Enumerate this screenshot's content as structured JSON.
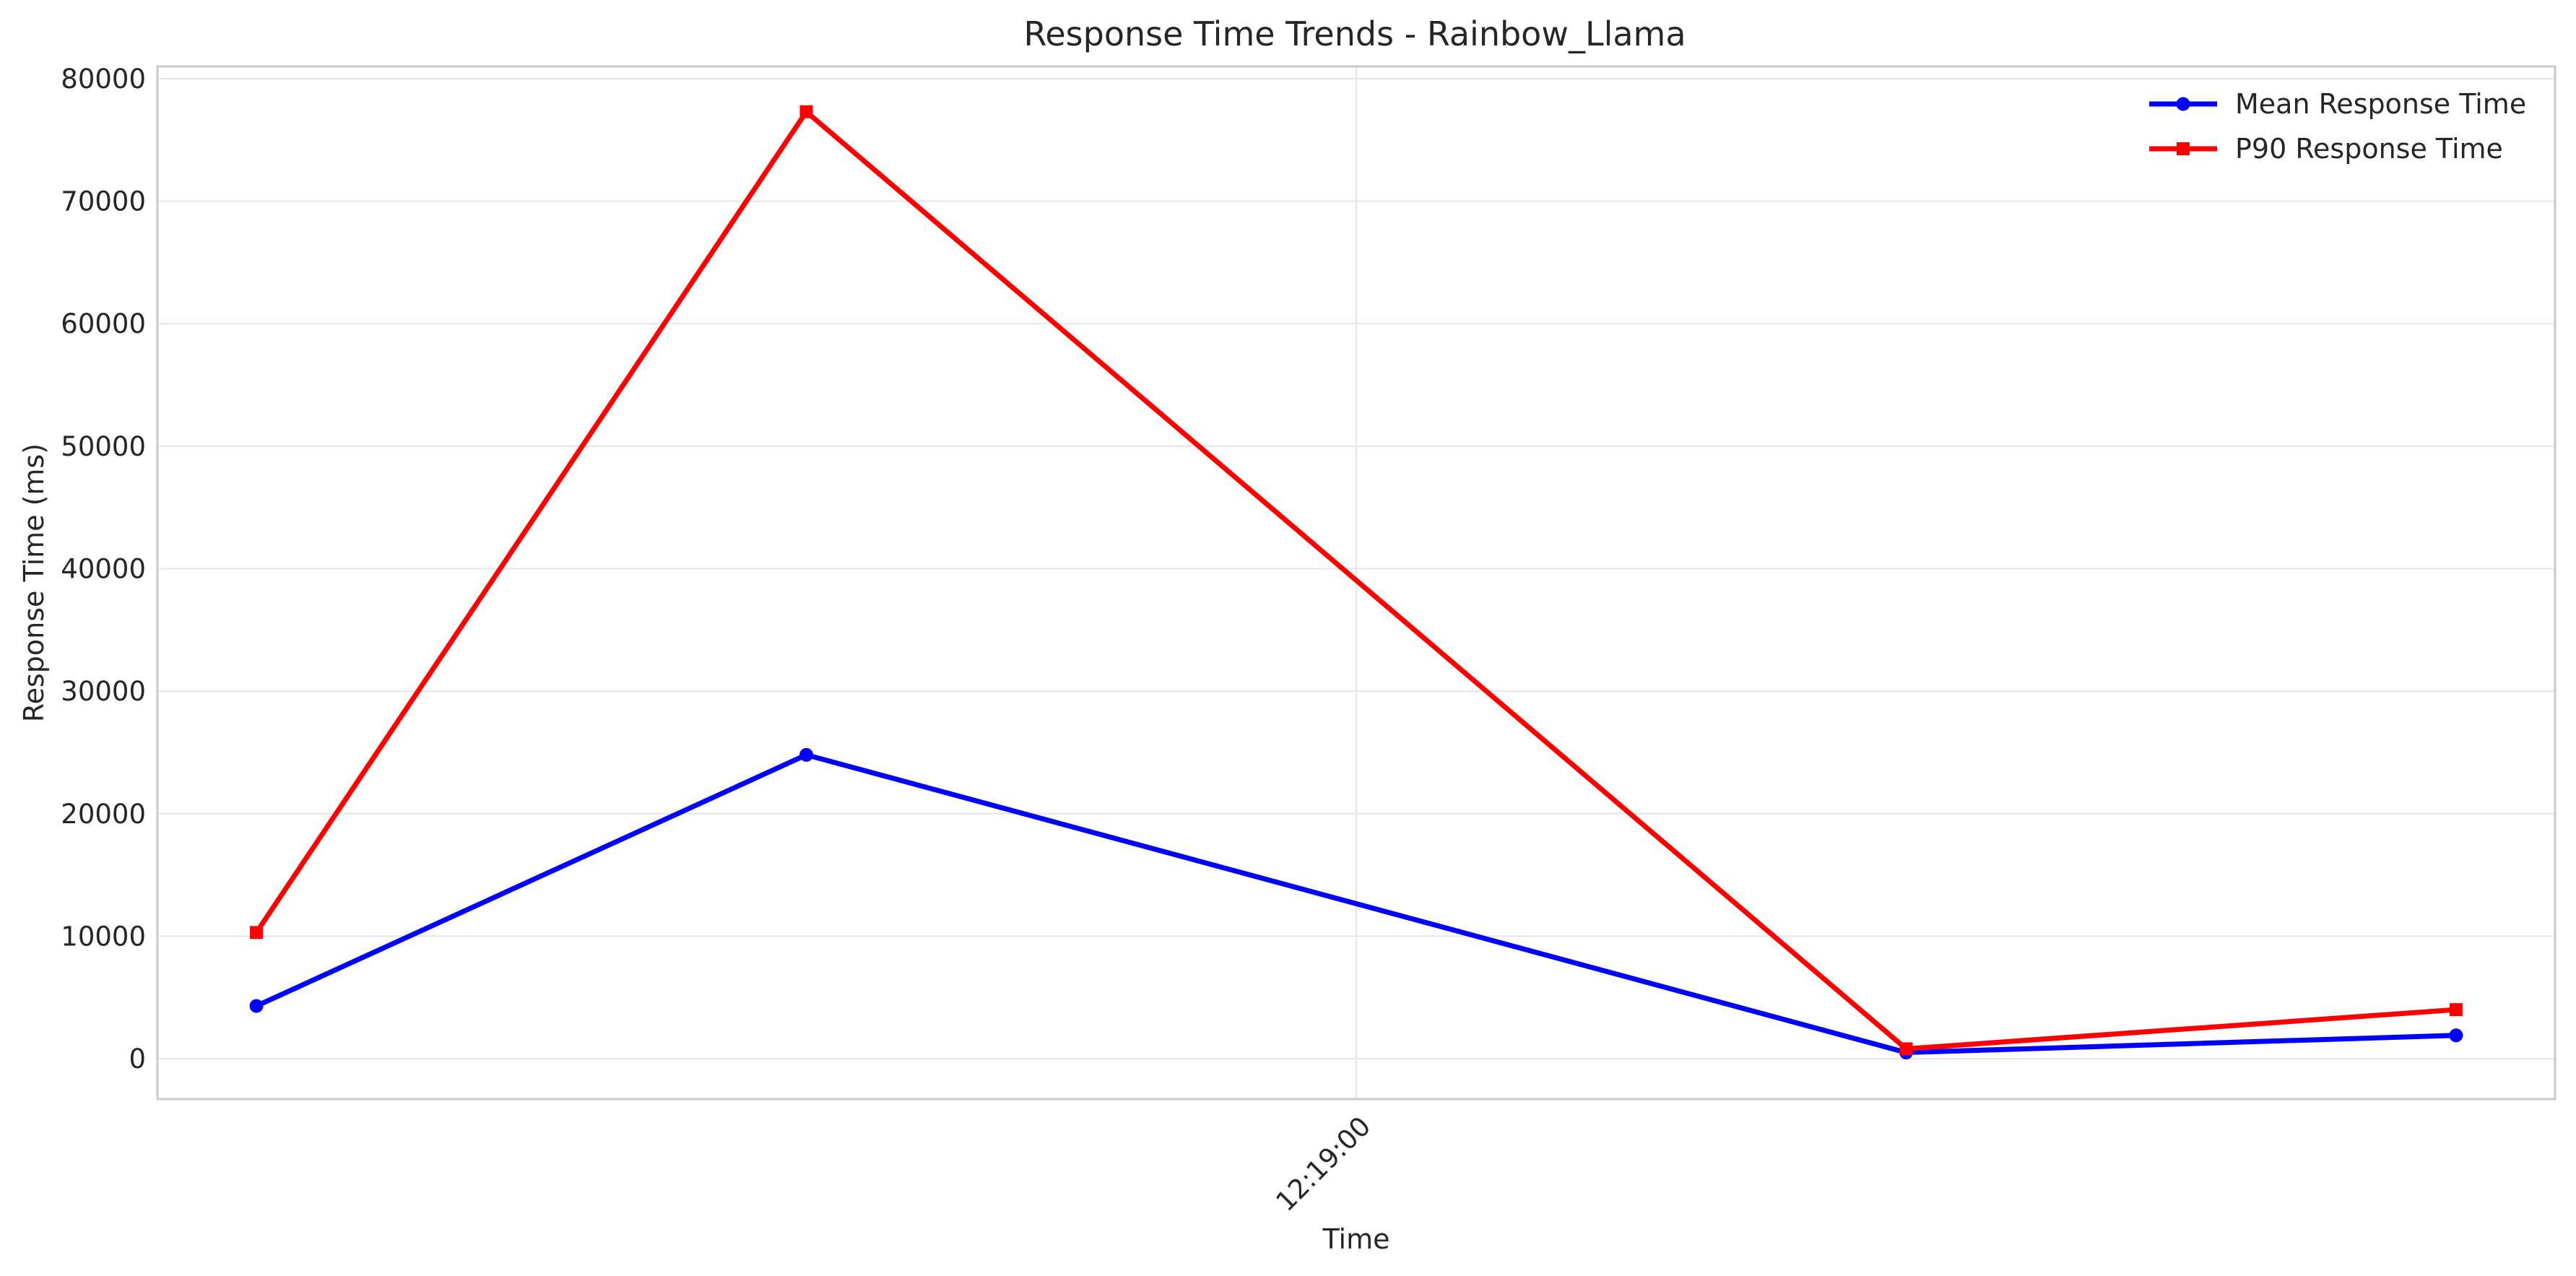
{
  "chart_data": {
    "type": "line",
    "title": "Response Time Trends - Rainbow_Llama",
    "xlabel": "Time",
    "ylabel": "Response Time (ms)",
    "x": [
      "12:18:00",
      "12:18:30",
      "12:19:30",
      "12:20:00"
    ],
    "x_ticks": [
      "12:19:00"
    ],
    "y_ticks": [
      0,
      10000,
      20000,
      30000,
      40000,
      50000,
      60000,
      70000,
      80000
    ],
    "ylim": [
      -3300,
      81000
    ],
    "grid": true,
    "legend_position": "top-right",
    "series": [
      {
        "name": "Mean Response Time",
        "values": [
          4300,
          24800,
          500,
          1900
        ],
        "color": "#0000ff",
        "marker": "circle"
      },
      {
        "name": "P90 Response Time",
        "values": [
          10300,
          77300,
          800,
          4000
        ],
        "color": "#ff0000",
        "marker": "square"
      }
    ]
  }
}
